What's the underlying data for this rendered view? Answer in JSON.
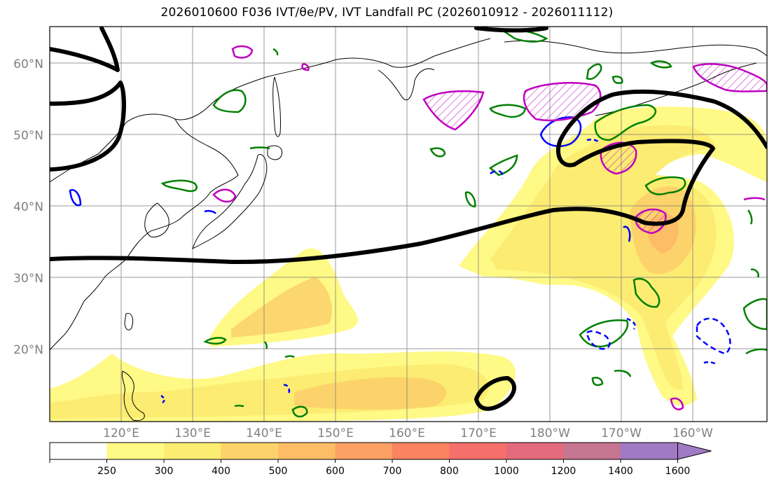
{
  "title": "2026010600 F036 IVT/θe/PV, IVT Landfall PC (2026010912 - 2026011112)",
  "lat_labels": [
    "60°N",
    "50°N",
    "40°N",
    "30°N",
    "20°N"
  ],
  "lon_labels": [
    "120°E",
    "130°E",
    "140°E",
    "150°E",
    "160°E",
    "170°E",
    "180°W",
    "170°W",
    "160°W"
  ],
  "colorbar": {
    "ticks": [
      "250",
      "300",
      "400",
      "500",
      "600",
      "700",
      "800",
      "1000",
      "1200",
      "1400",
      "1600"
    ],
    "colors": [
      "#ffffff",
      "#fff985",
      "#fcec72",
      "#fcd36a",
      "#fdbd67",
      "#fca064",
      "#fb8360",
      "#f5706a",
      "#e3697c",
      "#c67590",
      "#a07ac4"
    ]
  },
  "colors": {
    "theta_e": "#000000",
    "ivt_positive": "#008000",
    "ivt_negative": "#0000ff",
    "pv": "#c000c0",
    "grid": "#808080"
  }
}
